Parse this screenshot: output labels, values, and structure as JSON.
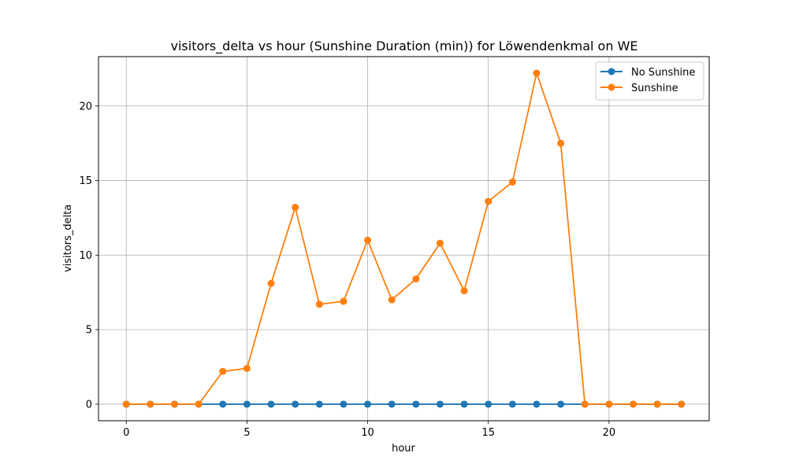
{
  "chart_data": {
    "type": "line",
    "title": "visitors_delta vs hour (Sunshine Duration (min)) for Löwendenkmal on WE",
    "xlabel": "hour",
    "ylabel": "visitors_delta",
    "xlim": [
      -1.15,
      24.15
    ],
    "ylim": [
      -1.11,
      23.31
    ],
    "xticks": [
      0,
      5,
      10,
      15,
      20
    ],
    "yticks": [
      0,
      5,
      10,
      15,
      20
    ],
    "grid": true,
    "legend_position": "top-right",
    "series": [
      {
        "name": "No Sunshine",
        "color": "#1f77b4",
        "x": [
          0,
          1,
          2,
          3,
          4,
          5,
          6,
          7,
          8,
          9,
          10,
          11,
          12,
          13,
          14,
          15,
          16,
          17,
          18,
          19,
          20,
          21,
          22,
          23
        ],
        "y": [
          0,
          0,
          0,
          0,
          0,
          0,
          0,
          0,
          0,
          0,
          0,
          0,
          0,
          0,
          0,
          0,
          0,
          0,
          0,
          0,
          0,
          0,
          0,
          0
        ]
      },
      {
        "name": "Sunshine",
        "color": "#ff7f0e",
        "x": [
          0,
          1,
          2,
          3,
          4,
          5,
          6,
          7,
          8,
          9,
          10,
          11,
          12,
          13,
          14,
          15,
          16,
          17,
          18,
          19,
          20,
          21,
          22,
          23
        ],
        "y": [
          0,
          0,
          0,
          0,
          2.2,
          2.4,
          8.1,
          13.2,
          6.7,
          6.9,
          11.0,
          7.0,
          8.4,
          10.8,
          7.6,
          13.6,
          14.9,
          22.2,
          17.5,
          0,
          0,
          0,
          0,
          0
        ]
      }
    ]
  }
}
